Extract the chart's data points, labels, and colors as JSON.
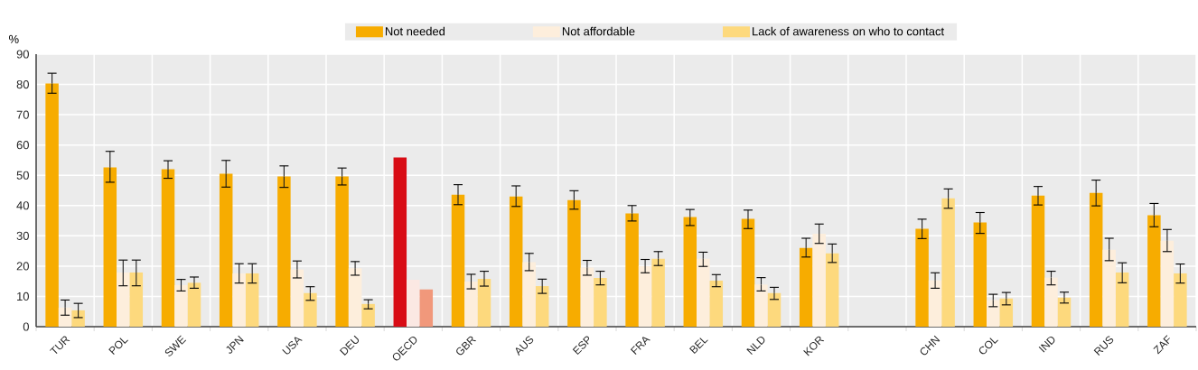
{
  "chart_data": {
    "type": "bar",
    "ylabel": "%",
    "categories": [
      "TUR",
      "POL",
      "SWE",
      "JPN",
      "USA",
      "DEU",
      "OECD",
      "GBR",
      "AUS",
      "ESP",
      "FRA",
      "BEL",
      "NLD",
      "KOR",
      null,
      "CHN",
      "COL",
      "IND",
      "RUS",
      "ZAF"
    ],
    "series": [
      {
        "name": "Not needed",
        "color": "#f7ac00",
        "colors": [
          "#f7ac00",
          "#f7ac00",
          "#f7ac00",
          "#f7ac00",
          "#f7ac00",
          "#f7ac00",
          "#d80c15",
          "#f7ac00",
          "#f7ac00",
          "#f7ac00",
          "#f7ac00",
          "#f7ac00",
          "#f7ac00",
          "#f7ac00",
          "#f7ac00",
          "#f7ac00",
          "#f7ac00",
          "#f7ac00",
          "#f7ac00",
          "#f7ac00"
        ],
        "values": [
          80.3,
          52.6,
          52.0,
          50.5,
          49.6,
          49.6,
          55.9,
          43.6,
          43.0,
          41.8,
          37.4,
          36.2,
          35.6,
          26.0,
          null,
          32.3,
          34.4,
          43.3,
          44.2,
          36.8
        ],
        "errors": [
          [
            77.1,
            83.7
          ],
          [
            47.7,
            57.9
          ],
          [
            49.0,
            54.8
          ],
          [
            46.1,
            54.9
          ],
          [
            46.0,
            53.1
          ],
          [
            46.8,
            52.4
          ],
          null,
          [
            40.3,
            46.9
          ],
          [
            39.7,
            46.5
          ],
          [
            38.8,
            44.9
          ],
          [
            34.9,
            40.0
          ],
          [
            33.4,
            38.7
          ],
          [
            32.4,
            38.5
          ],
          [
            23.0,
            29.2
          ],
          null,
          [
            29.1,
            35.5
          ],
          [
            30.8,
            37.7
          ],
          [
            40.2,
            46.3
          ],
          [
            39.9,
            48.4
          ],
          [
            33.0,
            40.7
          ]
        ]
      },
      {
        "name": "Not affordable",
        "color": "#fdeedc",
        "colors": [
          "#fdeedc",
          "#fdeedc",
          "#fdeedc",
          "#fdeedc",
          "#fdeedc",
          "#fdeedc",
          "#fbe8e3",
          "#fdeedc",
          "#fdeedc",
          "#fdeedc",
          "#fdeedc",
          "#fdeedc",
          "#fdeedc",
          "#fdeedc",
          "#fdeedc",
          "#fdeedc",
          "#fdeedc",
          "#fdeedc",
          "#fdeedc",
          "#fdeedc"
        ],
        "values": [
          6.3,
          17.9,
          13.7,
          17.6,
          18.9,
          19.3,
          15.5,
          14.9,
          21.3,
          19.5,
          20.0,
          22.4,
          13.9,
          30.7,
          null,
          15.3,
          8.8,
          16.2,
          25.4,
          28.4
        ],
        "errors": [
          [
            3.8,
            8.8
          ],
          [
            13.5,
            22.0
          ],
          [
            11.8,
            15.6
          ],
          [
            14.4,
            20.8
          ],
          [
            16.1,
            21.7
          ],
          [
            17.0,
            21.5
          ],
          null,
          [
            12.5,
            17.3
          ],
          [
            18.5,
            24.2
          ],
          [
            17.0,
            21.9
          ],
          [
            17.8,
            22.2
          ],
          [
            19.9,
            24.6
          ],
          [
            11.8,
            16.2
          ],
          [
            27.5,
            33.9
          ],
          null,
          [
            12.7,
            17.8
          ],
          [
            6.6,
            10.7
          ],
          [
            13.8,
            18.3
          ],
          [
            21.8,
            29.2
          ],
          [
            24.8,
            32.1
          ]
        ]
      },
      {
        "name": "Lack of awareness on who to contact",
        "color": "#fdd97d",
        "colors": [
          "#fdd97d",
          "#fdd97d",
          "#fdd97d",
          "#fdd97d",
          "#fdd97d",
          "#fdd97d",
          "#f1987b",
          "#fdd97d",
          "#fdd97d",
          "#fdd97d",
          "#fdd97d",
          "#fdd97d",
          "#fdd97d",
          "#fdd97d",
          "#fdd97d",
          "#fdd97d",
          "#fdd97d",
          "#fdd97d",
          "#fdd97d",
          "#fdd97d"
        ],
        "values": [
          5.4,
          17.9,
          14.5,
          17.6,
          11.1,
          7.5,
          12.3,
          15.8,
          13.4,
          16.1,
          22.4,
          15.2,
          11.1,
          24.2,
          null,
          42.4,
          9.3,
          9.6,
          17.9,
          17.6
        ],
        "errors": [
          [
            3.0,
            7.7
          ],
          [
            13.5,
            22.0
          ],
          [
            12.7,
            16.4
          ],
          [
            14.4,
            20.8
          ],
          [
            8.7,
            13.2
          ],
          [
            5.9,
            8.9
          ],
          null,
          [
            13.4,
            18.3
          ],
          [
            11.0,
            15.7
          ],
          [
            13.8,
            18.3
          ],
          [
            20.2,
            24.8
          ],
          [
            13.2,
            17.2
          ],
          [
            9.0,
            13.0
          ],
          [
            21.2,
            27.3
          ],
          null,
          [
            39.1,
            45.5
          ],
          [
            7.2,
            11.3
          ],
          [
            7.8,
            11.4
          ],
          [
            14.5,
            21.1
          ],
          [
            14.4,
            20.7
          ]
        ]
      }
    ],
    "ylim": [
      0,
      90
    ],
    "yticks": [
      0,
      10,
      20,
      30,
      40,
      50,
      60,
      70,
      80,
      90
    ],
    "grid": true,
    "legend": "top"
  }
}
